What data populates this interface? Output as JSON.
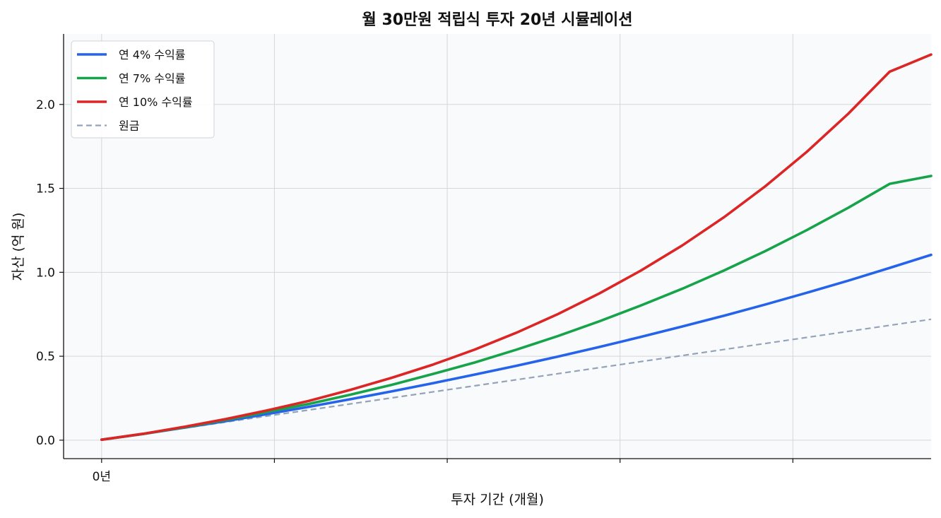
{
  "chart_data": {
    "type": "line",
    "title": "월 30만원 적립식 투자 20년 시뮬레이션",
    "xlabel": "투자 기간 (개월)",
    "ylabel": "자산 (억 원)",
    "xlim": [
      -11,
      240
    ],
    "ylim": [
      -0.11,
      2.42
    ],
    "x_ticks": [
      0,
      50,
      100,
      150,
      200,
      250
    ],
    "x_tick_labels": [
      "0년",
      "",
      "",
      "",
      "",
      ""
    ],
    "y_ticks": [
      0.0,
      0.5,
      1.0,
      1.5,
      2.0
    ],
    "y_tick_labels": [
      "0.0",
      "0.5",
      "1.0",
      "1.5",
      "2.0"
    ],
    "grid": true,
    "legend_position": "top-left",
    "x": [
      0,
      12,
      24,
      36,
      48,
      60,
      72,
      84,
      96,
      108,
      120,
      132,
      144,
      156,
      168,
      180,
      192,
      204,
      216,
      228,
      240
    ],
    "series": [
      {
        "name": "연 4% 수익률",
        "color": "#2563eb",
        "dash": "solid",
        "values": [
          0.003,
          0.037,
          0.075,
          0.114,
          0.156,
          0.199,
          0.244,
          0.291,
          0.34,
          0.391,
          0.443,
          0.498,
          0.555,
          0.615,
          0.677,
          0.741,
          0.808,
          0.878,
          0.95,
          1.026,
          1.104
        ]
      },
      {
        "name": "연 7% 수익률",
        "color": "#16a34a",
        "dash": "solid",
        "values": [
          0.003,
          0.037,
          0.077,
          0.121,
          0.169,
          0.216,
          0.271,
          0.33,
          0.395,
          0.463,
          0.539,
          0.62,
          0.708,
          0.802,
          0.902,
          1.01,
          1.126,
          1.251,
          1.384,
          1.527,
          1.574
        ]
      },
      {
        "name": "연 10% 수익률",
        "color": "#dc2626",
        "dash": "solid",
        "values": [
          0.003,
          0.038,
          0.08,
          0.126,
          0.178,
          0.234,
          0.3,
          0.372,
          0.451,
          0.54,
          0.64,
          0.751,
          0.874,
          1.01,
          1.16,
          1.327,
          1.512,
          1.717,
          1.944,
          2.195,
          2.297
        ]
      },
      {
        "name": "원금",
        "color": "#94a3b8",
        "dash": "dashed",
        "values": [
          0.003,
          0.036,
          0.072,
          0.108,
          0.144,
          0.18,
          0.216,
          0.252,
          0.288,
          0.324,
          0.36,
          0.396,
          0.432,
          0.468,
          0.504,
          0.54,
          0.576,
          0.612,
          0.648,
          0.684,
          0.72
        ]
      }
    ]
  }
}
